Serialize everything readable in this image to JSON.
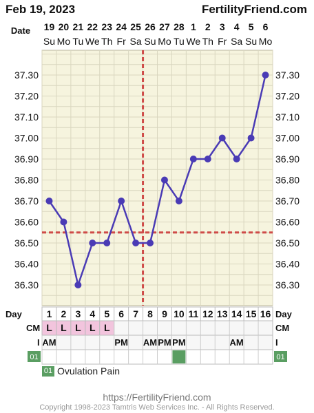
{
  "header": {
    "date": "Feb 19, 2023",
    "site": "FertilityFriend.com"
  },
  "labels": {
    "date": "Date",
    "day": "Day",
    "cm": "CM",
    "i": "I"
  },
  "chart_data": {
    "type": "line",
    "dates": [
      "19",
      "20",
      "21",
      "22",
      "23",
      "24",
      "25",
      "26",
      "27",
      "28",
      "1",
      "2",
      "3",
      "4",
      "5",
      "6"
    ],
    "weekdays": [
      "Su",
      "Mo",
      "Tu",
      "We",
      "Th",
      "Fr",
      "Sa",
      "Su",
      "Mo",
      "Tu",
      "We",
      "Th",
      "Fr",
      "Sa",
      "Su",
      "Mo"
    ],
    "days": [
      "1",
      "2",
      "3",
      "4",
      "5",
      "6",
      "7",
      "8",
      "9",
      "10",
      "11",
      "12",
      "13",
      "14",
      "15",
      "16"
    ],
    "values": [
      36.7,
      36.6,
      36.3,
      36.5,
      36.5,
      36.7,
      36.5,
      36.5,
      36.8,
      36.7,
      36.9,
      36.9,
      37.0,
      36.9,
      37.0,
      37.3
    ],
    "y_ticks": [
      "36.30",
      "36.40",
      "36.50",
      "36.60",
      "36.70",
      "36.80",
      "36.90",
      "37.00",
      "37.10",
      "37.20",
      "37.30"
    ],
    "ylim": [
      36.2,
      37.4
    ],
    "coverline": 36.55,
    "ovulation_day": 8,
    "cm": [
      "L",
      "L",
      "L",
      "L",
      "L",
      "",
      "",
      "",
      "",
      "",
      "",
      "",
      "",
      "",
      "",
      ""
    ],
    "intercourse": [
      "AM",
      "",
      "",
      "",
      "",
      "PM",
      "",
      "AM",
      "PM",
      "PM",
      "",
      "",
      "",
      "AM",
      "",
      ""
    ],
    "symptom_days": [
      10
    ],
    "colors": {
      "line": "#4a3bb5",
      "grid": "#d9d6bf",
      "bg": "#f6f4de",
      "coverline": "#cf4b48",
      "cm_fill": "#f2c4dd",
      "symptom": "#5a9e62"
    }
  },
  "legend": {
    "code": "01",
    "label": "Ovulation Pain"
  },
  "footer": {
    "url": "https://FertilityFriend.com",
    "copyright": "Copyright 1998-2023 Tamtris Web Services Inc. - All Rights Reserved."
  }
}
